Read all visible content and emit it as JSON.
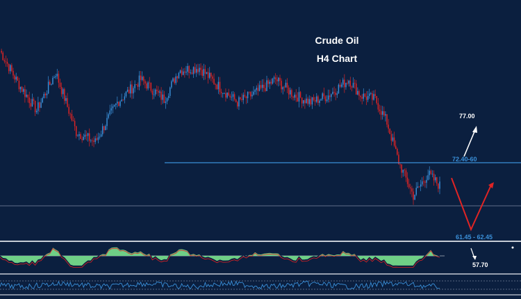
{
  "chart_data": {
    "type": "candlestick",
    "title": "Crude Oil",
    "subtitle": "H4 Chart",
    "colors": {
      "background": "#0b1f3f",
      "up_candle": "#3a8fd8",
      "down_candle": "#e02424",
      "support_line": "#3a8fd8",
      "projection_down": "#e02424",
      "projection_up": "#ffffff",
      "macd_fill": "#6fcf86"
    },
    "annotations": {
      "target_label": "77.00",
      "resistance_label": "72.40-60",
      "support_label": "61.45 - 62.45",
      "extended_label": "57.70"
    },
    "close_path": [
      {
        "i": 0,
        "p": 77.2
      },
      {
        "i": 12,
        "p": 74.0
      },
      {
        "i": 25,
        "p": 71.2
      },
      {
        "i": 38,
        "p": 75.0
      },
      {
        "i": 52,
        "p": 69.0
      },
      {
        "i": 65,
        "p": 68.0
      },
      {
        "i": 80,
        "p": 72.0
      },
      {
        "i": 96,
        "p": 74.3
      },
      {
        "i": 112,
        "p": 72.3
      },
      {
        "i": 122,
        "p": 75.2
      },
      {
        "i": 136,
        "p": 75.5
      },
      {
        "i": 150,
        "p": 73.5
      },
      {
        "i": 162,
        "p": 72.0
      },
      {
        "i": 175,
        "p": 73.0
      },
      {
        "i": 188,
        "p": 74.3
      },
      {
        "i": 200,
        "p": 72.8
      },
      {
        "i": 212,
        "p": 72.0
      },
      {
        "i": 224,
        "p": 72.7
      },
      {
        "i": 238,
        "p": 74.3
      },
      {
        "i": 246,
        "p": 72.7
      },
      {
        "i": 256,
        "p": 72.3
      },
      {
        "i": 264,
        "p": 70.0
      },
      {
        "i": 272,
        "p": 66.0
      },
      {
        "i": 282,
        "p": 62.6
      },
      {
        "i": 292,
        "p": 64.8
      },
      {
        "i": 300,
        "p": 63.6
      }
    ],
    "candle_count": 300,
    "y_range": [
      58.5,
      79.5
    ]
  }
}
